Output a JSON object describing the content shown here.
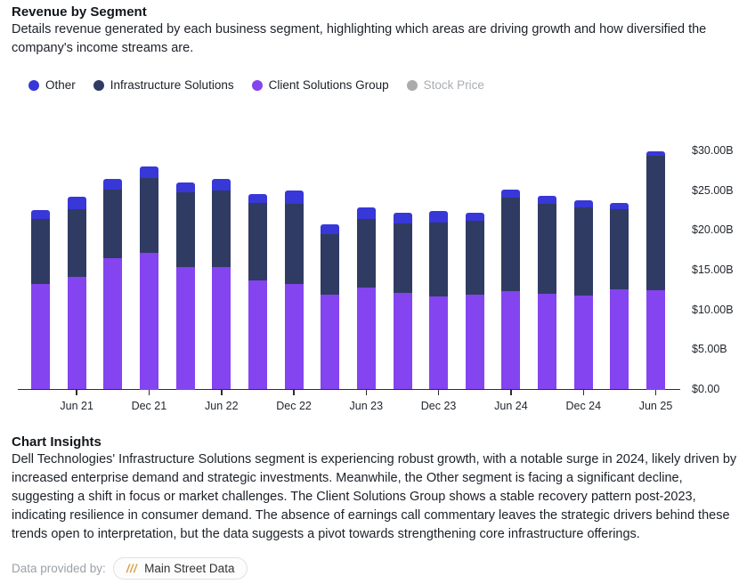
{
  "header": {
    "title": "Revenue by Segment",
    "description": "Details revenue generated by each business segment, highlighting which areas are driving growth and how diversified the company's income streams are."
  },
  "legend": [
    {
      "label": "Other",
      "color": "#3837d7",
      "disabled": false
    },
    {
      "label": "Infrastructure Solutions",
      "color": "#2f3b62",
      "disabled": false
    },
    {
      "label": "Client Solutions Group",
      "color": "#8444f0",
      "disabled": false
    },
    {
      "label": "Stock Price",
      "color": "#ababab",
      "disabled": true
    }
  ],
  "chart_data": {
    "type": "bar",
    "stacked": true,
    "unit": "USD billions",
    "x": [
      "Mar 21",
      "Jun 21",
      "Sep 21",
      "Dec 21",
      "Mar 22",
      "Jun 22",
      "Sep 22",
      "Dec 22",
      "Mar 23",
      "Jun 23",
      "Sep 23",
      "Dec 23",
      "Mar 24",
      "Jun 24",
      "Sep 24",
      "Dec 24",
      "Mar 25",
      "Jun 25"
    ],
    "visible_tick_labels": [
      "Jun 21",
      "Dec 21",
      "Jun 22",
      "Dec 22",
      "Jun 23",
      "Dec 23",
      "Jun 24",
      "Dec 24",
      "Jun 25"
    ],
    "series": [
      {
        "name": "Client Solutions Group",
        "color": "#8444f0",
        "values": [
          13.3,
          14.2,
          16.6,
          17.3,
          15.5,
          15.4,
          13.8,
          13.3,
          12.0,
          12.9,
          12.2,
          11.7,
          12.0,
          12.4,
          12.1,
          11.9,
          12.6,
          12.5
        ]
      },
      {
        "name": "Infrastructure Solutions",
        "color": "#2f3b62",
        "values": [
          8.2,
          8.6,
          8.6,
          9.4,
          9.4,
          9.7,
          9.7,
          10.1,
          7.6,
          8.6,
          8.8,
          9.4,
          9.3,
          11.8,
          11.3,
          11.1,
          10.2,
          17.0
        ]
      },
      {
        "name": "Other",
        "color": "#3837d7",
        "values": [
          1.2,
          1.5,
          1.4,
          1.4,
          1.2,
          1.5,
          1.2,
          1.7,
          1.3,
          1.5,
          1.3,
          1.4,
          1.0,
          1.0,
          1.0,
          0.9,
          0.8,
          0.6
        ]
      }
    ],
    "y_axis": {
      "side": "right",
      "min": 0,
      "max": 30,
      "ticks": [
        "$0.00",
        "$5.00B",
        "$10.00B",
        "$15.00B",
        "$20.00B",
        "$25.00B",
        "$30.00B"
      ]
    },
    "grid": false,
    "legend_position": "top"
  },
  "insights": {
    "title": "Chart Insights",
    "body": "Dell Technologies' Infrastructure Solutions segment is experiencing robust growth, with a notable surge in 2024, likely driven by increased enterprise demand and strategic investments. Meanwhile, the Other segment is facing a significant decline, suggesting a shift in focus or market challenges. The Client Solutions Group shows a stable recovery pattern post-2023, indicating resilience in consumer demand. The absence of earnings call commentary leaves the strategic drivers behind these trends open to interpretation, but the data suggests a pivot towards strengthening core infrastructure offerings."
  },
  "footer": {
    "provider_label": "Data provided by:",
    "logo_glyph": "///",
    "logo_color": "#d9a045",
    "provider_name": "Main Street Data"
  }
}
